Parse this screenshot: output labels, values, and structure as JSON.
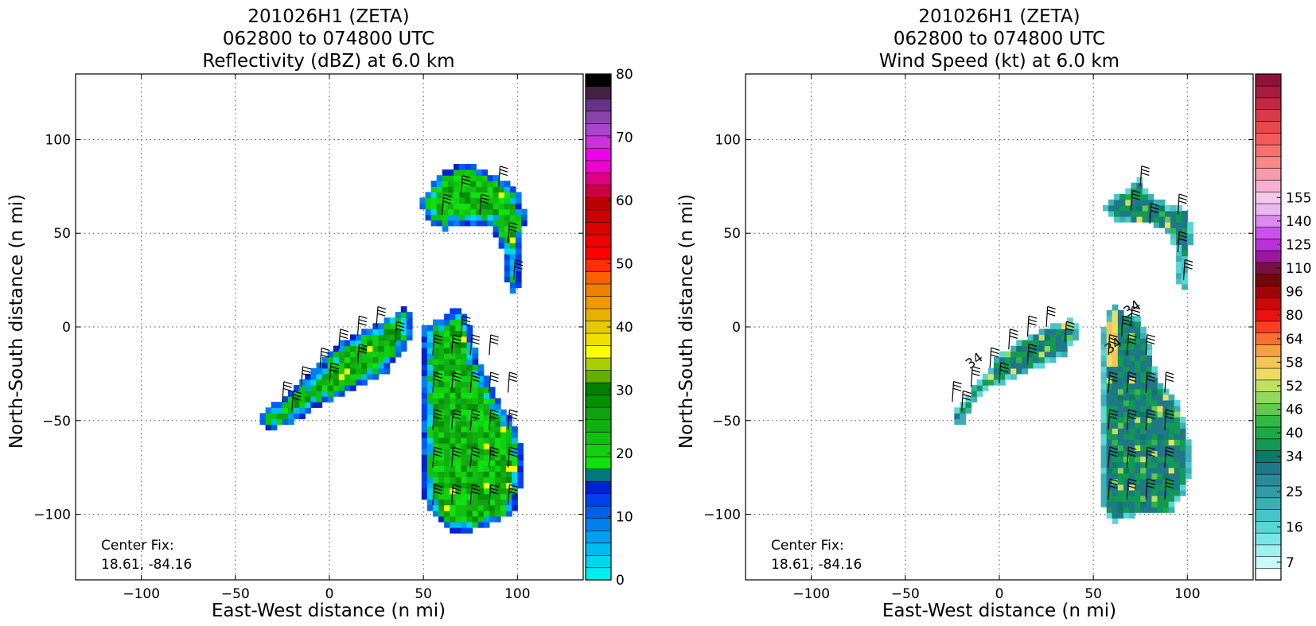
{
  "chart_data": [
    {
      "type": "heatmap",
      "panel_id": "reflectivity",
      "title": [
        "201026H1 (ZETA)",
        "062800 to 074800 UTC",
        "Reflectivity (dBZ) at 6.0 km"
      ],
      "xlabel": "East-West distance (n mi)",
      "ylabel": "North-South distance (n mi)",
      "xlim": [
        -135,
        135
      ],
      "ylim": [
        -135,
        135
      ],
      "xticks": [
        -100,
        -50,
        0,
        50,
        100
      ],
      "yticks": [
        -100,
        -50,
        0,
        50,
        100
      ],
      "xtick_labels": [
        "−100",
        "−50",
        "0",
        "50",
        "100"
      ],
      "ytick_labels": [
        "−100",
        "−50",
        "0",
        "50",
        "100"
      ],
      "grid": true,
      "annotation": [
        "Center Fix:",
        "18.61, -84.16"
      ],
      "colorbar": {
        "min": 0,
        "max": 80,
        "tick_values": [
          0,
          10,
          20,
          30,
          40,
          50,
          60,
          70,
          80
        ],
        "tick_labels": [
          "0",
          "10",
          "20",
          "30",
          "40",
          "50",
          "60",
          "70",
          "80"
        ],
        "colors": [
          "#00eeee",
          "#00d6ee",
          "#00bbee",
          "#00a0ee",
          "#0080ee",
          "#0060ee",
          "#0040ee",
          "#0022cc",
          "#007880",
          "#10e010",
          "#10d010",
          "#10c010",
          "#10b010",
          "#10a010",
          "#009000",
          "#008000",
          "#60b000",
          "#a8d000",
          "#ffff00",
          "#f0e000",
          "#e8c800",
          "#e8b000",
          "#f09800",
          "#f08000",
          "#f86000",
          "#ff3000",
          "#ff0000",
          "#ee0000",
          "#dd0000",
          "#cc0000",
          "#bb0000",
          "#cc0040",
          "#dd0080",
          "#ee00cc",
          "#ee00ee",
          "#cc30dd",
          "#aa44cc",
          "#8844aa",
          "#663388",
          "#442244",
          "#000000"
        ]
      },
      "scan_regions": [
        {
          "vertices": [
            [
              -37,
              -47
            ],
            [
              -28,
              -40
            ],
            [
              -18,
              -32
            ],
            [
              -5,
              -20
            ],
            [
              5,
              -8
            ],
            [
              22,
              0
            ],
            [
              40,
              10
            ],
            [
              45,
              5
            ],
            [
              42,
              -8
            ],
            [
              30,
              -25
            ],
            [
              12,
              -33
            ],
            [
              -5,
              -42
            ],
            [
              -20,
              -52
            ],
            [
              -35,
              -55
            ]
          ]
        },
        {
          "vertices": [
            [
              50,
              0
            ],
            [
              62,
              5
            ],
            [
              68,
              12
            ],
            [
              75,
              0
            ],
            [
              80,
              -20
            ],
            [
              90,
              -40
            ],
            [
              100,
              -55
            ],
            [
              104,
              -70
            ],
            [
              102,
              -85
            ],
            [
              98,
              -100
            ],
            [
              80,
              -108
            ],
            [
              65,
              -110
            ],
            [
              55,
              -100
            ],
            [
              50,
              -90
            ],
            [
              49,
              -60
            ],
            [
              50,
              -30
            ]
          ]
        },
        {
          "vertices": [
            [
              48,
              65
            ],
            [
              55,
              78
            ],
            [
              68,
              88
            ],
            [
              78,
              86
            ],
            [
              90,
              80
            ],
            [
              100,
              75
            ],
            [
              104,
              60
            ],
            [
              102,
              40
            ],
            [
              100,
              15
            ],
            [
              94,
              25
            ],
            [
              92,
              40
            ],
            [
              85,
              55
            ],
            [
              70,
              55
            ],
            [
              60,
              52
            ],
            [
              52,
              58
            ]
          ]
        }
      ],
      "wind_barbs": [
        [
          -25,
          -40
        ],
        [
          -15,
          -32
        ],
        [
          -5,
          -22
        ],
        [
          5,
          -12
        ],
        [
          15,
          -5
        ],
        [
          25,
          0
        ],
        [
          35,
          -8
        ],
        [
          15,
          -20
        ],
        [
          0,
          -30
        ],
        [
          -20,
          -45
        ],
        [
          55,
          -15
        ],
        [
          65,
          -15
        ],
        [
          75,
          -15
        ],
        [
          85,
          -15
        ],
        [
          55,
          -35
        ],
        [
          65,
          -35
        ],
        [
          75,
          -35
        ],
        [
          85,
          -35
        ],
        [
          95,
          -35
        ],
        [
          55,
          -55
        ],
        [
          65,
          -55
        ],
        [
          75,
          -55
        ],
        [
          85,
          -55
        ],
        [
          95,
          -55
        ],
        [
          55,
          -75
        ],
        [
          65,
          -75
        ],
        [
          75,
          -75
        ],
        [
          85,
          -75
        ],
        [
          95,
          -75
        ],
        [
          55,
          -95
        ],
        [
          65,
          -95
        ],
        [
          75,
          -95
        ],
        [
          85,
          -95
        ],
        [
          95,
          -95
        ],
        [
          70,
          -5
        ],
        [
          60,
          60
        ],
        [
          70,
          70
        ],
        [
          80,
          60
        ],
        [
          90,
          75
        ],
        [
          95,
          45
        ],
        [
          98,
          25
        ]
      ]
    },
    {
      "type": "heatmap",
      "panel_id": "windspeed",
      "title": [
        "201026H1 (ZETA)",
        "062800 to 074800 UTC",
        "Wind Speed (kt) at 6.0 km"
      ],
      "xlabel": "East-West distance (n mi)",
      "ylabel": "North-South distance (n mi)",
      "xlim": [
        -135,
        135
      ],
      "ylim": [
        -135,
        135
      ],
      "xticks": [
        -100,
        -50,
        0,
        50,
        100
      ],
      "yticks": [
        -100,
        -50,
        0,
        50,
        100
      ],
      "xtick_labels": [
        "−100",
        "−50",
        "0",
        "50",
        "100"
      ],
      "ytick_labels": [
        "−100",
        "−50",
        "0",
        "50",
        "100"
      ],
      "grid": true,
      "annotation": [
        "Center Fix:",
        "18.61, -84.16"
      ],
      "contour_labels": [
        {
          "text": "34",
          "x": -12,
          "y": -20
        },
        {
          "text": "34",
          "x": 62,
          "y": -12
        },
        {
          "text": "34",
          "x": 72,
          "y": 8
        }
      ],
      "colorbar": {
        "tick_labels": [
          "7",
          "16",
          "25",
          "34",
          "40",
          "46",
          "52",
          "58",
          "64",
          "80",
          "96",
          "110",
          "125",
          "140",
          "155"
        ],
        "tick_levels": [
          1,
          4,
          7,
          10,
          12,
          14,
          16,
          18,
          20,
          22,
          24,
          26,
          28,
          30,
          32
        ],
        "colors": [
          "#ffffff",
          "#c8fafa",
          "#a0f0f0",
          "#78e6e6",
          "#5ad6d6",
          "#48c4c8",
          "#3aaeb6",
          "#309ca8",
          "#2a8a98",
          "#1e7888",
          "#0d7a68",
          "#119955",
          "#1aaa44",
          "#30b840",
          "#62c850",
          "#90d860",
          "#c0e060",
          "#ecdd60",
          "#f6c454",
          "#f8a040",
          "#fa7030",
          "#f84020",
          "#ec1010",
          "#cc0808",
          "#a00404",
          "#700808",
          "#7a1040",
          "#9a18a0",
          "#bb30d8",
          "#cc50ee",
          "#dd88f0",
          "#eab8ee",
          "#f4c8e8",
          "#f8b0d0",
          "#f89aae",
          "#f88888",
          "#f87070",
          "#f45a5a",
          "#e84a4a",
          "#d83a48",
          "#c02a40",
          "#a81c3c",
          "#901238"
        ]
      },
      "scan_regions": [
        {
          "vertices": [
            [
              -27,
              -50
            ],
            [
              -20,
              -40
            ],
            [
              -10,
              -28
            ],
            [
              0,
              -15
            ],
            [
              10,
              -8
            ],
            [
              25,
              0
            ],
            [
              40,
              5
            ],
            [
              42,
              -5
            ],
            [
              35,
              -15
            ],
            [
              20,
              -22
            ],
            [
              5,
              -28
            ],
            [
              -10,
              -35
            ],
            [
              -20,
              -52
            ]
          ]
        },
        {
          "vertices": [
            [
              55,
              0
            ],
            [
              60,
              12
            ],
            [
              65,
              10
            ],
            [
              70,
              5
            ],
            [
              75,
              5
            ],
            [
              80,
              -10
            ],
            [
              85,
              -30
            ],
            [
              95,
              -40
            ],
            [
              100,
              -55
            ],
            [
              102,
              -70
            ],
            [
              100,
              -85
            ],
            [
              90,
              -100
            ],
            [
              75,
              -100
            ],
            [
              60,
              -105
            ],
            [
              55,
              -95
            ],
            [
              54,
              -60
            ],
            [
              55,
              -30
            ]
          ]
        },
        {
          "vertices": [
            [
              55,
              65
            ],
            [
              65,
              72
            ],
            [
              75,
              80
            ],
            [
              80,
              70
            ],
            [
              90,
              65
            ],
            [
              100,
              63
            ],
            [
              103,
              50
            ],
            [
              100,
              35
            ],
            [
              100,
              20
            ],
            [
              95,
              25
            ],
            [
              95,
              40
            ],
            [
              90,
              50
            ],
            [
              80,
              55
            ],
            [
              70,
              55
            ],
            [
              60,
              58
            ]
          ]
        }
      ],
      "wind_barbs": [
        [
          -25,
          -40
        ],
        [
          -15,
          -32
        ],
        [
          -5,
          -22
        ],
        [
          5,
          -12
        ],
        [
          15,
          -5
        ],
        [
          25,
          0
        ],
        [
          35,
          -8
        ],
        [
          15,
          -20
        ],
        [
          0,
          -30
        ],
        [
          -20,
          -45
        ],
        [
          58,
          -15
        ],
        [
          68,
          -15
        ],
        [
          78,
          -15
        ],
        [
          58,
          -35
        ],
        [
          68,
          -35
        ],
        [
          78,
          -35
        ],
        [
          88,
          -35
        ],
        [
          58,
          -55
        ],
        [
          68,
          -55
        ],
        [
          78,
          -55
        ],
        [
          88,
          -55
        ],
        [
          58,
          -75
        ],
        [
          68,
          -75
        ],
        [
          78,
          -75
        ],
        [
          88,
          -75
        ],
        [
          58,
          -92
        ],
        [
          68,
          -92
        ],
        [
          78,
          -92
        ],
        [
          88,
          -92
        ],
        [
          70,
          0
        ],
        [
          65,
          -5
        ],
        [
          75,
          75
        ],
        [
          70,
          62
        ],
        [
          80,
          55
        ],
        [
          95,
          60
        ],
        [
          95,
          40
        ],
        [
          98,
          25
        ]
      ]
    }
  ]
}
